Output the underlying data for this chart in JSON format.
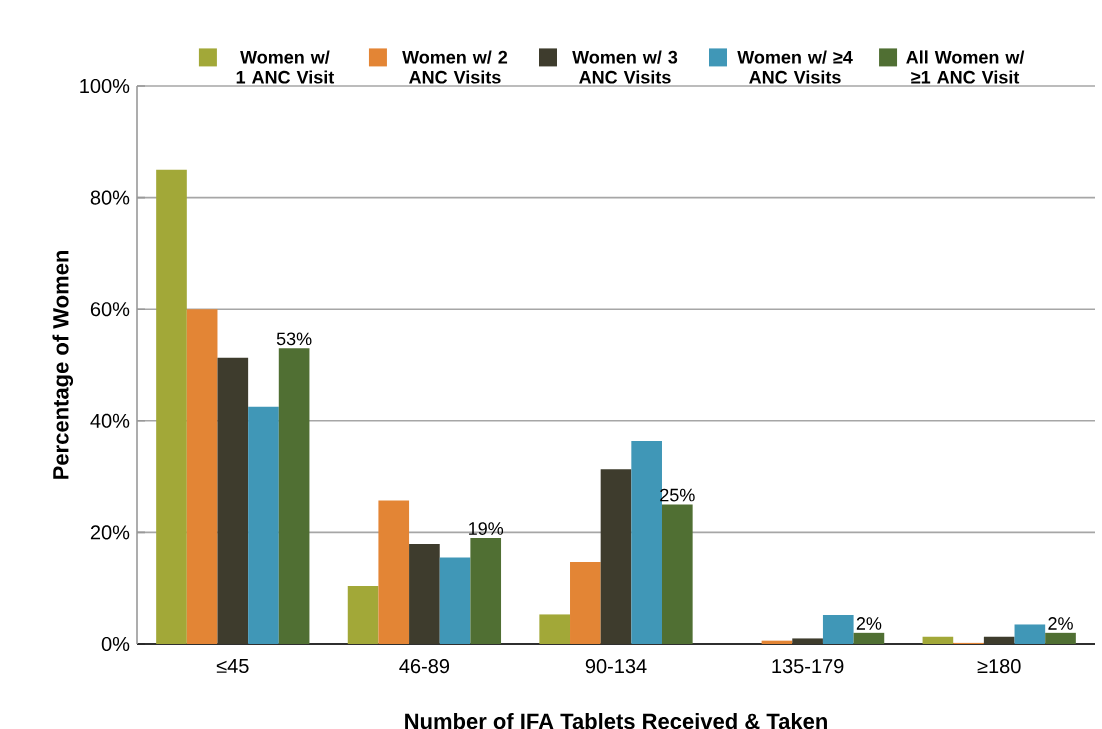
{
  "chart_data": {
    "type": "bar",
    "xlabel": "Number of IFA Tablets Received & Taken",
    "ylabel": "Percentage of Women",
    "categories": [
      "≤45",
      "46-89",
      "90-134",
      "135-179",
      "≥180"
    ],
    "series": [
      {
        "name": "Women w/ 1 ANC Visit",
        "color": "#a2a838",
        "values": [
          85,
          10.4,
          5.3,
          0,
          1.3
        ]
      },
      {
        "name": "Women w/ 2 ANC Visits",
        "color": "#e38535",
        "values": [
          60,
          25.7,
          14.7,
          0.6,
          0.2
        ]
      },
      {
        "name": "Women w/ 3 ANC Visits",
        "color": "#3e3c2d",
        "values": [
          51.3,
          17.9,
          31.3,
          1.0,
          1.3
        ]
      },
      {
        "name": "Women w/ ≥4 ANC Visits",
        "color": "#4097b7",
        "values": [
          42.5,
          15.5,
          36.4,
          5.2,
          3.5
        ]
      },
      {
        "name": "All Women w/ ≥1 ANC Visit",
        "color": "#506f33",
        "values": [
          53,
          19,
          25,
          2,
          2
        ],
        "value_labels": [
          "53%",
          "19%",
          "25%",
          "2%",
          "2%"
        ]
      }
    ],
    "ylim": [
      0,
      100
    ],
    "yticks": [
      {
        "value": 0,
        "label": "0%"
      },
      {
        "value": 20,
        "label": "20%"
      },
      {
        "value": 40,
        "label": "40%"
      },
      {
        "value": 60,
        "label": "60%"
      },
      {
        "value": 80,
        "label": "80%"
      },
      {
        "value": 100,
        "label": "100%"
      }
    ],
    "grid": "y",
    "legend": "top"
  }
}
